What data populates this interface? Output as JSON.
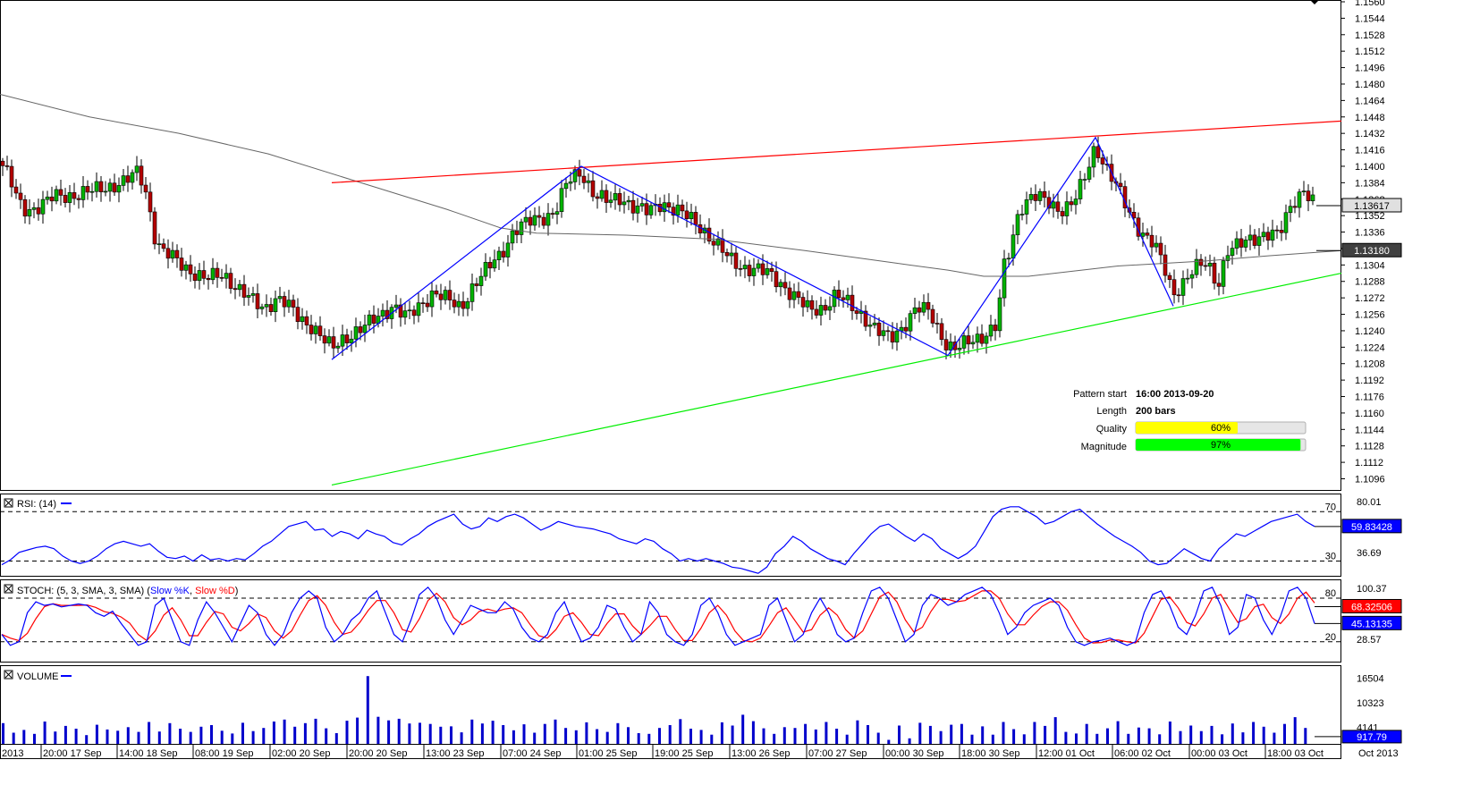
{
  "chart_data": [
    {
      "type": "candlestick",
      "panel": "price",
      "y_ticks": [
        "1.1560",
        "1.1544",
        "1.1528",
        "1.1512",
        "1.1496",
        "1.1480",
        "1.1464",
        "1.1448",
        "1.1432",
        "1.1416",
        "1.1400",
        "1.1384",
        "1.1368",
        "1.1352",
        "1.1336",
        "1.1320",
        "1.1304",
        "1.1288",
        "1.1272",
        "1.1256",
        "1.1240",
        "1.1224",
        "1.1208",
        "1.1192",
        "1.1176",
        "1.1160",
        "1.1144",
        "1.1128",
        "1.1112",
        "1.1096"
      ],
      "ylim": [
        1.1086,
        1.156
      ],
      "x_ticks": [
        "2013",
        "20:00 17 Sep",
        "14:00 18 Sep",
        "08:00 19 Sep",
        "02:00 20 Sep",
        "20:00 20 Sep",
        "13:00 23 Sep",
        "07:00 24 Sep",
        "01:00 25 Sep",
        "19:00 25 Sep",
        "13:00 26 Sep",
        "07:00 27 Sep",
        "00:00 30 Sep",
        "18:00 30 Sep",
        "12:00 01 Oct",
        "06:00 02 Oct",
        "00:00 03 Oct",
        "18:00 03 Oct",
        "Oct 2013"
      ],
      "current_price": "1.13617",
      "ma_value": "1.13180",
      "close_path": [
        [
          0,
          1.1405
        ],
        [
          10,
          1.139
        ],
        [
          20,
          1.1365
        ],
        [
          30,
          1.1357
        ],
        [
          45,
          1.1362
        ],
        [
          60,
          1.137
        ],
        [
          80,
          1.1372
        ],
        [
          100,
          1.1375
        ],
        [
          120,
          1.138
        ],
        [
          140,
          1.1385
        ],
        [
          155,
          1.1395
        ],
        [
          165,
          1.137
        ],
        [
          172,
          1.1335
        ],
        [
          180,
          1.1318
        ],
        [
          195,
          1.131
        ],
        [
          210,
          1.13
        ],
        [
          230,
          1.129
        ],
        [
          250,
          1.1295
        ],
        [
          265,
          1.1282
        ],
        [
          280,
          1.127
        ],
        [
          295,
          1.1262
        ],
        [
          310,
          1.1272
        ],
        [
          320,
          1.1266
        ],
        [
          335,
          1.1252
        ],
        [
          350,
          1.1244
        ],
        [
          365,
          1.1228
        ],
        [
          372,
          1.1222
        ],
        [
          380,
          1.123
        ],
        [
          395,
          1.1238
        ],
        [
          410,
          1.1245
        ],
        [
          425,
          1.1255
        ],
        [
          440,
          1.1265
        ],
        [
          455,
          1.1252
        ],
        [
          470,
          1.1265
        ],
        [
          485,
          1.1278
        ],
        [
          500,
          1.127
        ],
        [
          515,
          1.1262
        ],
        [
          530,
          1.1285
        ],
        [
          545,
          1.13
        ],
        [
          560,
          1.1315
        ],
        [
          575,
          1.1338
        ],
        [
          590,
          1.1345
        ],
        [
          605,
          1.135
        ],
        [
          620,
          1.1355
        ],
        [
          635,
          1.1385
        ],
        [
          650,
          1.1395
        ],
        [
          665,
          1.1372
        ],
        [
          680,
          1.1365
        ],
        [
          695,
          1.137
        ],
        [
          710,
          1.136
        ],
        [
          725,
          1.1355
        ],
        [
          740,
          1.1365
        ],
        [
          755,
          1.1358
        ],
        [
          770,
          1.135
        ],
        [
          785,
          1.134
        ],
        [
          800,
          1.1325
        ],
        [
          815,
          1.131
        ],
        [
          830,
          1.1302
        ],
        [
          845,
          1.13
        ],
        [
          860,
          1.1295
        ],
        [
          875,
          1.1285
        ],
        [
          890,
          1.1272
        ],
        [
          905,
          1.126
        ],
        [
          920,
          1.1262
        ],
        [
          935,
          1.1275
        ],
        [
          950,
          1.1265
        ],
        [
          965,
          1.1255
        ],
        [
          980,
          1.124
        ],
        [
          995,
          1.1232
        ],
        [
          1010,
          1.1245
        ],
        [
          1025,
          1.1262
        ],
        [
          1040,
          1.1258
        ],
        [
          1050,
          1.124
        ],
        [
          1060,
          1.1225
        ],
        [
          1070,
          1.1222
        ],
        [
          1085,
          1.123
        ],
        [
          1100,
          1.1236
        ],
        [
          1115,
          1.1245
        ],
        [
          1122,
          1.13
        ],
        [
          1130,
          1.132
        ],
        [
          1140,
          1.136
        ],
        [
          1155,
          1.1372
        ],
        [
          1170,
          1.1365
        ],
        [
          1185,
          1.1358
        ],
        [
          1200,
          1.1365
        ],
        [
          1212,
          1.1385
        ],
        [
          1225,
          1.142
        ],
        [
          1238,
          1.1398
        ],
        [
          1250,
          1.1378
        ],
        [
          1262,
          1.1355
        ],
        [
          1275,
          1.1338
        ],
        [
          1290,
          1.1325
        ],
        [
          1300,
          1.1305
        ],
        [
          1312,
          1.1275
        ],
        [
          1320,
          1.1285
        ],
        [
          1335,
          1.13
        ],
        [
          1350,
          1.1305
        ],
        [
          1362,
          1.1285
        ],
        [
          1372,
          1.1318
        ],
        [
          1385,
          1.1322
        ],
        [
          1400,
          1.133
        ],
        [
          1415,
          1.1335
        ],
        [
          1430,
          1.1332
        ],
        [
          1445,
          1.1365
        ],
        [
          1458,
          1.1378
        ],
        [
          1470,
          1.1362
        ]
      ],
      "moving_average": [
        [
          0,
          1.147
        ],
        [
          100,
          1.1448
        ],
        [
          200,
          1.1432
        ],
        [
          300,
          1.1412
        ],
        [
          400,
          1.1385
        ],
        [
          500,
          1.1358
        ],
        [
          560,
          1.134
        ],
        [
          600,
          1.1335
        ],
        [
          700,
          1.1333
        ],
        [
          800,
          1.1329
        ],
        [
          900,
          1.1318
        ],
        [
          1000,
          1.1306
        ],
        [
          1060,
          1.1299
        ],
        [
          1100,
          1.1293
        ],
        [
          1150,
          1.1293
        ],
        [
          1250,
          1.1303
        ],
        [
          1350,
          1.1308
        ],
        [
          1420,
          1.1313
        ],
        [
          1500,
          1.1318
        ]
      ],
      "zigzag": [
        [
          371,
          1.1212
        ],
        [
          650,
          1.14
        ],
        [
          1060,
          1.1216
        ],
        [
          1225,
          1.1428
        ],
        [
          1312,
          1.1264
        ]
      ],
      "resistance_line": [
        [
          371,
          1.1384
        ],
        [
          1500,
          1.1444
        ]
      ],
      "support_line": [
        [
          371,
          1.109
        ],
        [
          1500,
          1.1296
        ]
      ],
      "pattern_info": {
        "pattern_start_label": "Pattern start",
        "pattern_start": "16:00 2013-09-20",
        "length_label": "Length",
        "length": "200 bars",
        "quality_label": "Quality",
        "quality": 60,
        "quality_text": "60%",
        "magnitude_label": "Magnitude",
        "magnitude": 97,
        "magnitude_text": "97%"
      }
    },
    {
      "type": "line",
      "panel": "rsi",
      "title": "RSI: (14)",
      "y_ticks": [
        "80.01",
        "36.69"
      ],
      "levels": [
        70,
        30
      ],
      "current_value": "59.83428",
      "values": [
        27,
        31,
        37,
        39,
        41,
        42,
        40,
        34,
        30,
        28,
        30,
        34,
        40,
        44,
        46,
        44,
        42,
        44,
        38,
        33,
        32,
        34,
        30,
        35,
        31,
        32,
        30,
        32,
        31,
        36,
        42,
        46,
        52,
        58,
        60,
        62,
        55,
        56,
        50,
        54,
        52,
        48,
        55,
        52,
        50,
        45,
        43,
        48,
        52,
        58,
        62,
        65,
        68,
        60,
        56,
        58,
        65,
        62,
        66,
        68,
        65,
        60,
        55,
        58,
        62,
        60,
        58,
        57,
        56,
        54,
        52,
        48,
        46,
        44,
        48,
        46,
        40,
        36,
        30,
        32,
        30,
        32,
        30,
        28,
        25,
        24,
        22,
        20,
        25,
        36,
        42,
        50,
        46,
        40,
        36,
        32,
        30,
        27,
        36,
        44,
        52,
        58,
        60,
        55,
        50,
        46,
        52,
        48,
        40,
        36,
        32,
        36,
        42,
        54,
        66,
        72,
        74,
        74,
        70,
        66,
        60,
        62,
        66,
        70,
        72,
        66,
        60,
        55,
        50,
        46,
        42,
        37,
        30,
        27,
        28,
        34,
        40,
        36,
        32,
        30,
        40,
        46,
        52,
        50,
        54,
        58,
        62,
        64,
        66,
        68,
        62,
        58
      ]
    },
    {
      "type": "line",
      "panel": "stoch",
      "title": "STOCH: (5, 3, SMA, 3, SMA)",
      "legend": [
        {
          "name": "Slow %K",
          "color": "#0000ff"
        },
        {
          "name": "Slow %D",
          "color": "#ff0000"
        }
      ],
      "y_ticks": [
        "100.37",
        "28.57"
      ],
      "levels": [
        80,
        20
      ],
      "current_values": [
        "68.32506",
        "45.13135"
      ],
      "k_values": [
        30,
        15,
        20,
        60,
        75,
        70,
        72,
        68,
        70,
        72,
        70,
        60,
        55,
        62,
        45,
        30,
        15,
        20,
        70,
        80,
        50,
        20,
        15,
        50,
        75,
        60,
        40,
        20,
        45,
        70,
        60,
        30,
        15,
        30,
        60,
        80,
        90,
        80,
        40,
        20,
        30,
        50,
        60,
        80,
        90,
        60,
        30,
        20,
        50,
        85,
        95,
        80,
        50,
        30,
        50,
        70,
        65,
        60,
        60,
        75,
        65,
        40,
        25,
        20,
        30,
        60,
        75,
        45,
        20,
        25,
        40,
        70,
        65,
        40,
        20,
        30,
        75,
        60,
        30,
        20,
        15,
        30,
        70,
        80,
        60,
        30,
        15,
        20,
        25,
        30,
        70,
        80,
        50,
        20,
        30,
        60,
        80,
        60,
        30,
        20,
        25,
        60,
        90,
        95,
        80,
        50,
        20,
        30,
        70,
        85,
        80,
        70,
        75,
        85,
        90,
        95,
        85,
        60,
        30,
        40,
        60,
        70,
        75,
        80,
        70,
        40,
        20,
        15,
        20,
        22,
        25,
        20,
        15,
        20,
        60,
        85,
        90,
        70,
        40,
        30,
        55,
        90,
        95,
        70,
        30,
        40,
        85,
        80,
        50,
        30,
        55,
        90,
        95,
        80,
        45
      ]
    },
    {
      "type": "bar",
      "panel": "volume",
      "title": "VOLUME",
      "y_ticks": [
        "16504",
        "10323",
        "4141"
      ],
      "current_value": "917.79",
      "ylim": [
        0,
        19500
      ],
      "values": [
        5200,
        2800,
        3500,
        2500,
        5600,
        3100,
        4500,
        3800,
        2200,
        4800,
        3600,
        3300,
        4200,
        3000,
        5500,
        3100,
        5200,
        3800,
        3000,
        4300,
        4700,
        3300,
        2600,
        5300,
        3200,
        4000,
        5600,
        6100,
        4300,
        5200,
        6300,
        3900,
        2700,
        5800,
        6600,
        17000,
        6800,
        5900,
        6300,
        5100,
        5300,
        5000,
        4300,
        4400,
        2900,
        6100,
        5100,
        5800,
        4700,
        3400,
        4900,
        2800,
        5000,
        6100,
        4000,
        3400,
        5400,
        3700,
        3000,
        5200,
        4200,
        2700,
        2500,
        4000,
        4700,
        6200,
        3800,
        3500,
        2300,
        5400,
        4600,
        7300,
        5700,
        3900,
        2500,
        4200,
        4000,
        5000,
        3600,
        5500,
        3800,
        2300,
        5900,
        4700,
        2800,
        1000,
        4600,
        1400,
        5300,
        4500,
        3200,
        4800,
        5000,
        2300,
        4400,
        2300,
        5500,
        3700,
        2400,
        5500,
        4500,
        6700,
        3000,
        2600,
        5000,
        2500,
        3900,
        5700,
        2500,
        4100,
        3900,
        2400,
        5600,
        3200,
        4600,
        3200,
        4500,
        2400,
        5100,
        2900,
        5500,
        4300,
        2800,
        5000,
        6700,
        4000
      ]
    }
  ]
}
